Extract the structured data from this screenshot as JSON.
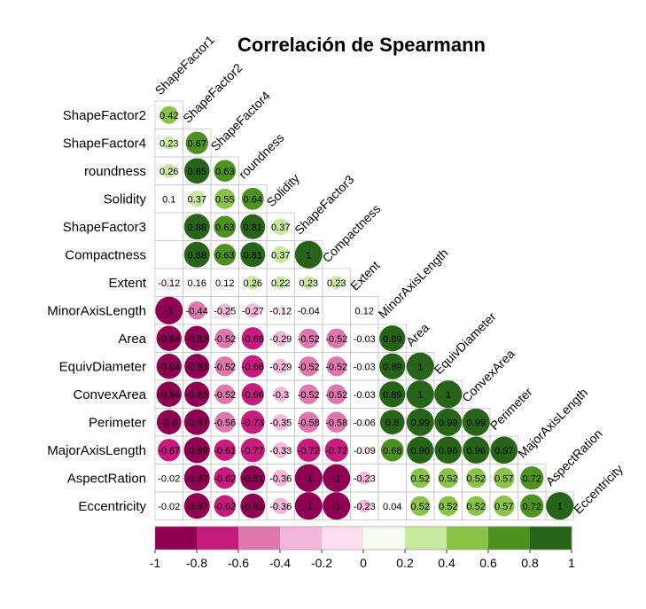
{
  "chart_data": {
    "type": "heatmap",
    "subtype": "correlation-matrix-lower-circles",
    "title": "Correlación de Spearmann",
    "variables": [
      "ShapeFactor1",
      "ShapeFactor2",
      "ShapeFactor4",
      "roundness",
      "Solidity",
      "ShapeFactor3",
      "Compactness",
      "Extent",
      "MinorAxisLength",
      "Area",
      "EquivDiameter",
      "ConvexArea",
      "Perimeter",
      "MajorAxisLength",
      "AspectRation",
      "Eccentricity"
    ],
    "rows": [
      {
        "label": "ShapeFactor2",
        "values": [
          0.42
        ]
      },
      {
        "label": "ShapeFactor4",
        "values": [
          0.23,
          0.67
        ]
      },
      {
        "label": "roundness",
        "values": [
          0.26,
          0.85,
          0.63
        ]
      },
      {
        "label": "Solidity",
        "values": [
          0.1,
          0.37,
          0.55,
          0.64
        ]
      },
      {
        "label": "ShapeFactor3",
        "values": [
          null,
          0.88,
          0.63,
          0.81,
          0.37
        ]
      },
      {
        "label": "Compactness",
        "values": [
          null,
          0.88,
          0.63,
          0.81,
          0.37,
          1
        ]
      },
      {
        "label": "Extent",
        "values": [
          -0.12,
          0.16,
          0.12,
          0.26,
          0.22,
          0.23,
          0.23
        ]
      },
      {
        "label": "MinorAxisLength",
        "values": [
          -1,
          -0.44,
          -0.25,
          -0.27,
          -0.12,
          -0.04,
          null,
          0.12
        ]
      },
      {
        "label": "Area",
        "values": [
          -0.84,
          -0.83,
          -0.52,
          -0.66,
          -0.29,
          -0.52,
          -0.52,
          -0.03,
          0.89
        ]
      },
      {
        "label": "EquivDiameter",
        "values": [
          -0.84,
          -0.83,
          -0.52,
          -0.66,
          -0.29,
          -0.52,
          -0.52,
          -0.03,
          0.89,
          1
        ]
      },
      {
        "label": "ConvexArea",
        "values": [
          -0.84,
          -0.83,
          -0.52,
          -0.66,
          -0.3,
          -0.52,
          -0.52,
          -0.03,
          0.89,
          1,
          1
        ]
      },
      {
        "label": "Perimeter",
        "values": [
          -0.8,
          -0.87,
          -0.56,
          -0.73,
          -0.35,
          -0.58,
          -0.58,
          -0.06,
          0.8,
          0.99,
          0.99,
          0.99
        ]
      },
      {
        "label": "MajorAxisLength",
        "values": [
          -0.67,
          -0.89,
          -0.61,
          -0.77,
          -0.33,
          -0.72,
          -0.72,
          -0.09,
          0.68,
          0.96,
          0.96,
          0.96,
          0.97
        ]
      },
      {
        "label": "AspectRation",
        "values": [
          -0.02,
          -0.87,
          -0.62,
          -0.81,
          -0.36,
          -1,
          -1,
          -0.23,
          null,
          0.52,
          0.52,
          0.52,
          0.57,
          0.72
        ]
      },
      {
        "label": "Eccentricity",
        "values": [
          -0.02,
          -0.87,
          -0.62,
          -0.81,
          -0.36,
          -1,
          -1,
          -0.23,
          0.04,
          0.52,
          0.52,
          0.52,
          0.57,
          0.72,
          1
        ]
      }
    ],
    "colorbar": {
      "range": [
        -1,
        1
      ],
      "ticks": [
        "-1",
        "-0.8",
        "-0.6",
        "-0.4",
        "-0.2",
        "0",
        "0.2",
        "0.4",
        "0.6",
        "0.8",
        "1"
      ],
      "colors": [
        "#8e0152",
        "#c51b7d",
        "#de77ae",
        "#f1b6da",
        "#fde0ef",
        "#f7fcf0",
        "#c7e9a0",
        "#8bc34a",
        "#4d9221",
        "#276419"
      ]
    }
  }
}
